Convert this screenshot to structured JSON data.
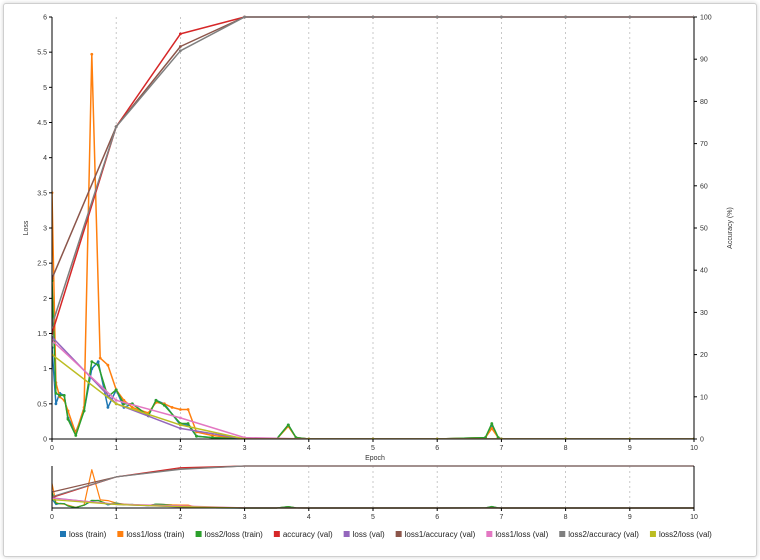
{
  "chart_data": {
    "type": "line",
    "xlabel": "Epoch",
    "ylabel_left": "Loss",
    "ylabel_right": "Accuracy (%)",
    "xlim": [
      0,
      10
    ],
    "ylim_left": [
      0,
      6
    ],
    "ylim_right": [
      0,
      100
    ],
    "x_ticks": [
      "0",
      "1",
      "2",
      "3",
      "4",
      "5",
      "6",
      "7",
      "8",
      "9",
      "10"
    ],
    "y_ticks_left": [
      "0",
      "0.5",
      "1",
      "1.5",
      "2",
      "2.5",
      "3",
      "3.5",
      "4",
      "4.5",
      "5",
      "5.5",
      "6"
    ],
    "y_ticks_right": [
      "0",
      "10",
      "20",
      "30",
      "40",
      "50",
      "60",
      "70",
      "80",
      "90",
      "100"
    ],
    "grid": "vertical dotted",
    "legend_position": "bottom",
    "series": [
      {
        "name": "loss (train)",
        "color": "#1f77b4",
        "axis": "left",
        "x": [
          0,
          0.06,
          0.12,
          0.19,
          0.25,
          0.37,
          0.5,
          0.62,
          0.72,
          0.87,
          1.0,
          1.12,
          1.25,
          1.5,
          1.62,
          1.75,
          2.0,
          2.12,
          2.25,
          2.5,
          3.0,
          3.5,
          3.68,
          3.8,
          4.0,
          5.0,
          6.0,
          6.75,
          6.85,
          6.95,
          7.0,
          8.0,
          10.0
        ],
        "y": [
          1.3,
          0.5,
          0.65,
          0.62,
          0.3,
          0.1,
          0.4,
          1.0,
          1.1,
          0.45,
          0.7,
          0.45,
          0.5,
          0.33,
          0.55,
          0.5,
          0.2,
          0.2,
          0.04,
          0.02,
          0.0,
          0.0,
          0.2,
          0.02,
          0.0,
          0.0,
          0.0,
          0.02,
          0.2,
          0.02,
          0.0,
          0.0,
          0.0
        ]
      },
      {
        "name": "loss1/loss (train)",
        "color": "#ff7f0e",
        "axis": "left",
        "x": [
          0,
          0.06,
          0.12,
          0.19,
          0.25,
          0.37,
          0.5,
          0.62,
          0.75,
          0.87,
          1.0,
          1.12,
          1.25,
          1.5,
          1.62,
          1.75,
          1.87,
          2.0,
          2.12,
          2.25,
          2.5,
          3.0,
          3.5,
          3.68,
          3.8,
          4.0,
          5.0,
          6.0,
          6.75,
          6.85,
          6.95,
          7.0,
          8.0,
          10.0
        ],
        "y": [
          3.5,
          0.8,
          0.6,
          0.55,
          0.4,
          0.08,
          0.45,
          5.47,
          1.15,
          1.05,
          0.7,
          0.55,
          0.45,
          0.37,
          0.52,
          0.5,
          0.45,
          0.42,
          0.42,
          0.1,
          0.05,
          0.0,
          0.0,
          0.18,
          0.02,
          0.0,
          0.0,
          0.0,
          0.02,
          0.15,
          0.02,
          0.0,
          0.0,
          0.0
        ]
      },
      {
        "name": "loss2/loss (train)",
        "color": "#2ca02c",
        "axis": "left",
        "x": [
          0,
          0.06,
          0.12,
          0.19,
          0.25,
          0.37,
          0.5,
          0.62,
          0.72,
          0.87,
          1.0,
          1.12,
          1.25,
          1.5,
          1.62,
          1.75,
          2.0,
          2.12,
          2.25,
          2.5,
          3.0,
          3.5,
          3.68,
          3.8,
          4.0,
          5.0,
          6.0,
          6.75,
          6.85,
          6.95,
          7.0,
          8.0,
          10.0
        ],
        "y": [
          2.25,
          0.65,
          0.62,
          0.62,
          0.28,
          0.05,
          0.4,
          1.1,
          1.05,
          0.6,
          0.7,
          0.5,
          0.5,
          0.33,
          0.55,
          0.48,
          0.22,
          0.22,
          0.04,
          0.02,
          0.0,
          0.0,
          0.2,
          0.02,
          0.0,
          0.0,
          0.0,
          0.02,
          0.22,
          0.02,
          0.0,
          0.0,
          0.0
        ]
      },
      {
        "name": "accuracy (val)",
        "color": "#d62728",
        "axis": "right",
        "x": [
          0,
          1,
          2,
          3,
          4,
          5,
          6,
          7,
          8,
          9,
          10
        ],
        "y": [
          25,
          74,
          96,
          100,
          100,
          100,
          100,
          100,
          100,
          100,
          100
        ]
      },
      {
        "name": "loss (val)",
        "color": "#9467bd",
        "axis": "left",
        "x": [
          0,
          1,
          2,
          3,
          4,
          5,
          6,
          7,
          8,
          9,
          10
        ],
        "y": [
          1.45,
          0.5,
          0.15,
          0.0,
          0.0,
          0.0,
          0.0,
          0.0,
          0.0,
          0.0,
          0.0
        ]
      },
      {
        "name": "loss1/accuracy (val)",
        "color": "#8c564b",
        "axis": "right",
        "x": [
          0,
          1,
          2,
          3,
          4,
          5,
          6,
          7,
          8,
          9,
          10
        ],
        "y": [
          38,
          74,
          93,
          100,
          100,
          100,
          100,
          100,
          100,
          100,
          100
        ]
      },
      {
        "name": "loss1/loss (val)",
        "color": "#e377c2",
        "axis": "left",
        "x": [
          0,
          1,
          2,
          3,
          4,
          5,
          6,
          7,
          8,
          9,
          10
        ],
        "y": [
          1.4,
          0.55,
          0.3,
          0.02,
          0.0,
          0.0,
          0.0,
          0.0,
          0.0,
          0.0,
          0.0
        ]
      },
      {
        "name": "loss2/accuracy (val)",
        "color": "#7f7f7f",
        "axis": "right",
        "x": [
          0,
          1,
          2,
          3,
          4,
          5,
          6,
          7,
          8,
          9,
          10
        ],
        "y": [
          27,
          74,
          92,
          100,
          100,
          100,
          100,
          100,
          100,
          100,
          100
        ]
      },
      {
        "name": "loss2/loss (val)",
        "color": "#bcbd22",
        "axis": "left",
        "x": [
          0,
          1,
          2,
          3,
          4,
          5,
          6,
          7,
          8,
          9,
          10
        ],
        "y": [
          1.2,
          0.5,
          0.2,
          0.0,
          0.0,
          0.0,
          0.0,
          0.0,
          0.0,
          0.0,
          0.0
        ]
      }
    ]
  }
}
